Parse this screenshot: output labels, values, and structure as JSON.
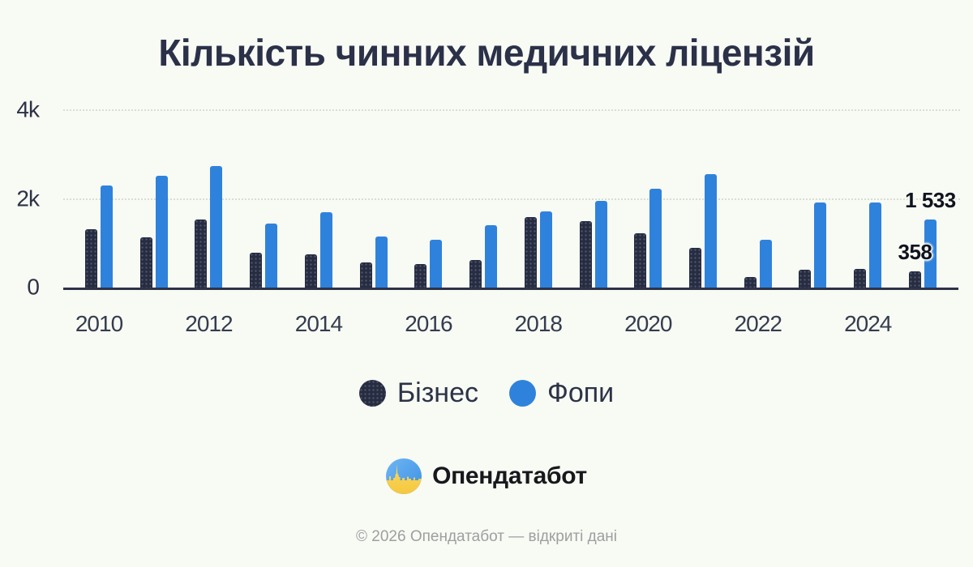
{
  "title": "Кількість чинних медичних ліцензій",
  "chart_data": {
    "type": "bar",
    "title": "Кількість чинних медичних ліцензій",
    "categories": [
      "2010",
      "2011",
      "2012",
      "2013",
      "2014",
      "2015",
      "2016",
      "2017",
      "2018",
      "2019",
      "2020",
      "2021",
      "2022",
      "2023",
      "2024",
      "2025"
    ],
    "series": [
      {
        "name": "Бізнес",
        "color": "#272c3f",
        "values": [
          1310,
          1130,
          1540,
          790,
          750,
          570,
          530,
          630,
          1590,
          1490,
          1230,
          890,
          230,
          410,
          420,
          358
        ]
      },
      {
        "name": "Фопи",
        "color": "#2f82dc",
        "values": [
          2310,
          2520,
          2740,
          1440,
          1700,
          1150,
          1070,
          1410,
          1710,
          1960,
          2220,
          2550,
          1070,
          1920,
          1920,
          1533
        ]
      }
    ],
    "xlabel": "",
    "ylabel": "",
    "ylim": [
      0,
      4000
    ],
    "yticks": [
      {
        "label": "0",
        "value": 0
      },
      {
        "label": "2k",
        "value": 2000
      },
      {
        "label": "4k",
        "value": 4000
      }
    ],
    "xticks": [
      "2010",
      "2012",
      "2014",
      "2016",
      "2018",
      "2020",
      "2022",
      "2024"
    ],
    "grid": "horizontal-dotted",
    "legend_position": "bottom",
    "annotations": [
      {
        "label": "358",
        "series": "Бізнес",
        "category": "2025"
      },
      {
        "label": "1 533",
        "series": "Фопи",
        "category": "2025"
      }
    ]
  },
  "branding": {
    "logo_text": "Опендатабот"
  },
  "footer": {
    "text": "© 2026 Опендатабот — відкриті дані"
  },
  "colors": {
    "background": "#f8faf4",
    "title": "#2b3148",
    "axis": "#2d3245",
    "gridline": "#d9ded4",
    "footer_text": "#9ba1a0"
  }
}
